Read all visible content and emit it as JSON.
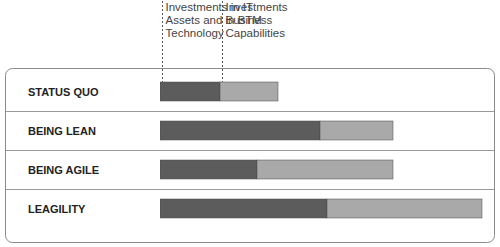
{
  "chart_data": {
    "type": "bar",
    "orientation": "horizontal",
    "stacked": true,
    "tick_labels": false,
    "categories": [
      "STATUS QUO",
      "BEING LEAN",
      "BEING AGILE",
      "LEAGILITY"
    ],
    "xlim": [
      0,
      330
    ],
    "series": [
      {
        "name": "Investments in IT Assets and Business Technology",
        "color": "#5c5c5c",
        "values": [
          60,
          160,
          97,
          167
        ]
      },
      {
        "name": "Investments in BTM Capabilities",
        "color": "#a9a9a9",
        "values": [
          58,
          73,
          136,
          155
        ]
      }
    ]
  }
}
